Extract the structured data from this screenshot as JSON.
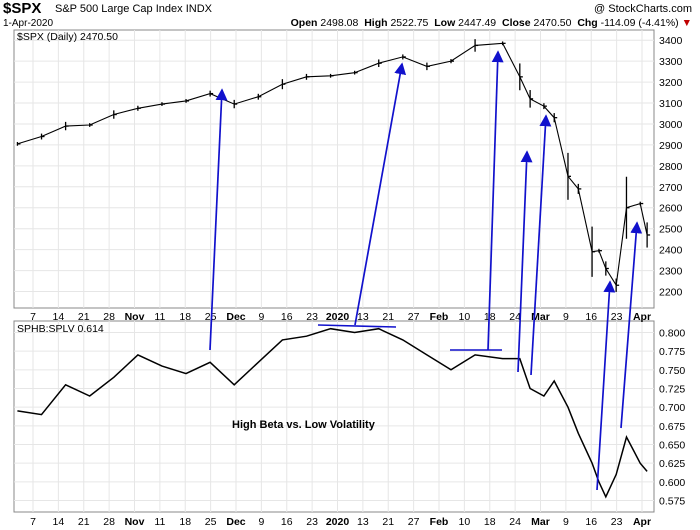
{
  "header": {
    "symbol": "$SPX",
    "name": "S&P 500 Large Cap Index",
    "exchange": "INDX",
    "source": "@ StockCharts.com",
    "date": "1-Apr-2020",
    "open_label": "Open",
    "open": "2498.08",
    "high_label": "High",
    "high": "2522.75",
    "low_label": "Low",
    "low": "2447.49",
    "close_label": "Close",
    "close": "2470.50",
    "chg_label": "Chg",
    "chg": "-114.09 (-4.41%)",
    "chg_icon": "down-triangle-icon"
  },
  "colors": {
    "arrow": "#1111cc",
    "price": "#000000",
    "grid": "#e6e6e6"
  },
  "chart_data": [
    {
      "type": "ohlc",
      "title": "$SPX (Daily) 2470.50",
      "ylim": [
        2150,
        3420
      ],
      "yticks": [
        2200,
        2300,
        2400,
        2500,
        2600,
        2700,
        2800,
        2900,
        3000,
        3100,
        3200,
        3300,
        3400
      ],
      "x_tick_labels": [
        "7",
        "14",
        "21",
        "28",
        "Nov",
        "11",
        "18",
        "25",
        "Dec",
        "9",
        "16",
        "23",
        "2020",
        "13",
        "21",
        "27",
        "Feb",
        "10",
        "18",
        "24",
        "Mar",
        "9",
        "16",
        "23",
        "Apr"
      ],
      "x_tick_bold": [
        "Nov",
        "Dec",
        "2020",
        "Feb",
        "Mar",
        "Apr"
      ],
      "dates": [
        "2019-10-01",
        "2019-10-08",
        "2019-10-15",
        "2019-10-22",
        "2019-10-29",
        "2019-11-05",
        "2019-11-12",
        "2019-11-19",
        "2019-11-26",
        "2019-12-03",
        "2019-12-10",
        "2019-12-17",
        "2019-12-24",
        "2019-12-31",
        "2020-01-07",
        "2020-01-14",
        "2020-01-21",
        "2020-01-28",
        "2020-02-04",
        "2020-02-11",
        "2020-02-19",
        "2020-02-24",
        "2020-02-27",
        "2020-03-02",
        "2020-03-05",
        "2020-03-09",
        "2020-03-12",
        "2020-03-16",
        "2020-03-18",
        "2020-03-20",
        "2020-03-23",
        "2020-03-26",
        "2020-03-30",
        "2020-04-01"
      ],
      "close": [
        2905,
        2940,
        2990,
        2995,
        3045,
        3075,
        3095,
        3110,
        3145,
        3095,
        3130,
        3190,
        3225,
        3230,
        3245,
        3290,
        3320,
        3275,
        3300,
        3375,
        3385,
        3225,
        3120,
        3085,
        3030,
        2750,
        2690,
        2390,
        2395,
        2310,
        2230,
        2600,
        2620,
        2470
      ]
    },
    {
      "type": "line",
      "title": "SPHB:SPLV 0.614",
      "annotation": "High Beta vs. Low Volatility",
      "ylim": [
        0.565,
        0.81
      ],
      "yticks": [
        0.575,
        0.6,
        0.625,
        0.65,
        0.675,
        0.7,
        0.725,
        0.75,
        0.775,
        0.8
      ],
      "ytick_labels": [
        "0.575",
        "0.600",
        "0.625",
        "0.650",
        "0.675",
        "0.700",
        "0.725",
        "0.750",
        "0.775",
        "0.800"
      ],
      "dates": [
        "2019-10-01",
        "2019-10-08",
        "2019-10-15",
        "2019-10-22",
        "2019-10-29",
        "2019-11-05",
        "2019-11-12",
        "2019-11-19",
        "2019-11-26",
        "2019-12-03",
        "2019-12-10",
        "2019-12-17",
        "2019-12-24",
        "2019-12-31",
        "2020-01-07",
        "2020-01-14",
        "2020-01-21",
        "2020-01-28",
        "2020-02-04",
        "2020-02-11",
        "2020-02-19",
        "2020-02-24",
        "2020-02-27",
        "2020-03-02",
        "2020-03-05",
        "2020-03-09",
        "2020-03-12",
        "2020-03-16",
        "2020-03-18",
        "2020-03-20",
        "2020-03-23",
        "2020-03-26",
        "2020-03-30",
        "2020-04-01"
      ],
      "values": [
        0.695,
        0.69,
        0.73,
        0.715,
        0.74,
        0.77,
        0.755,
        0.745,
        0.76,
        0.73,
        0.76,
        0.79,
        0.795,
        0.805,
        0.8,
        0.805,
        0.79,
        0.77,
        0.75,
        0.77,
        0.765,
        0.765,
        0.725,
        0.715,
        0.735,
        0.7,
        0.665,
        0.625,
        0.6,
        0.58,
        0.61,
        0.66,
        0.625,
        0.614
      ]
    }
  ]
}
